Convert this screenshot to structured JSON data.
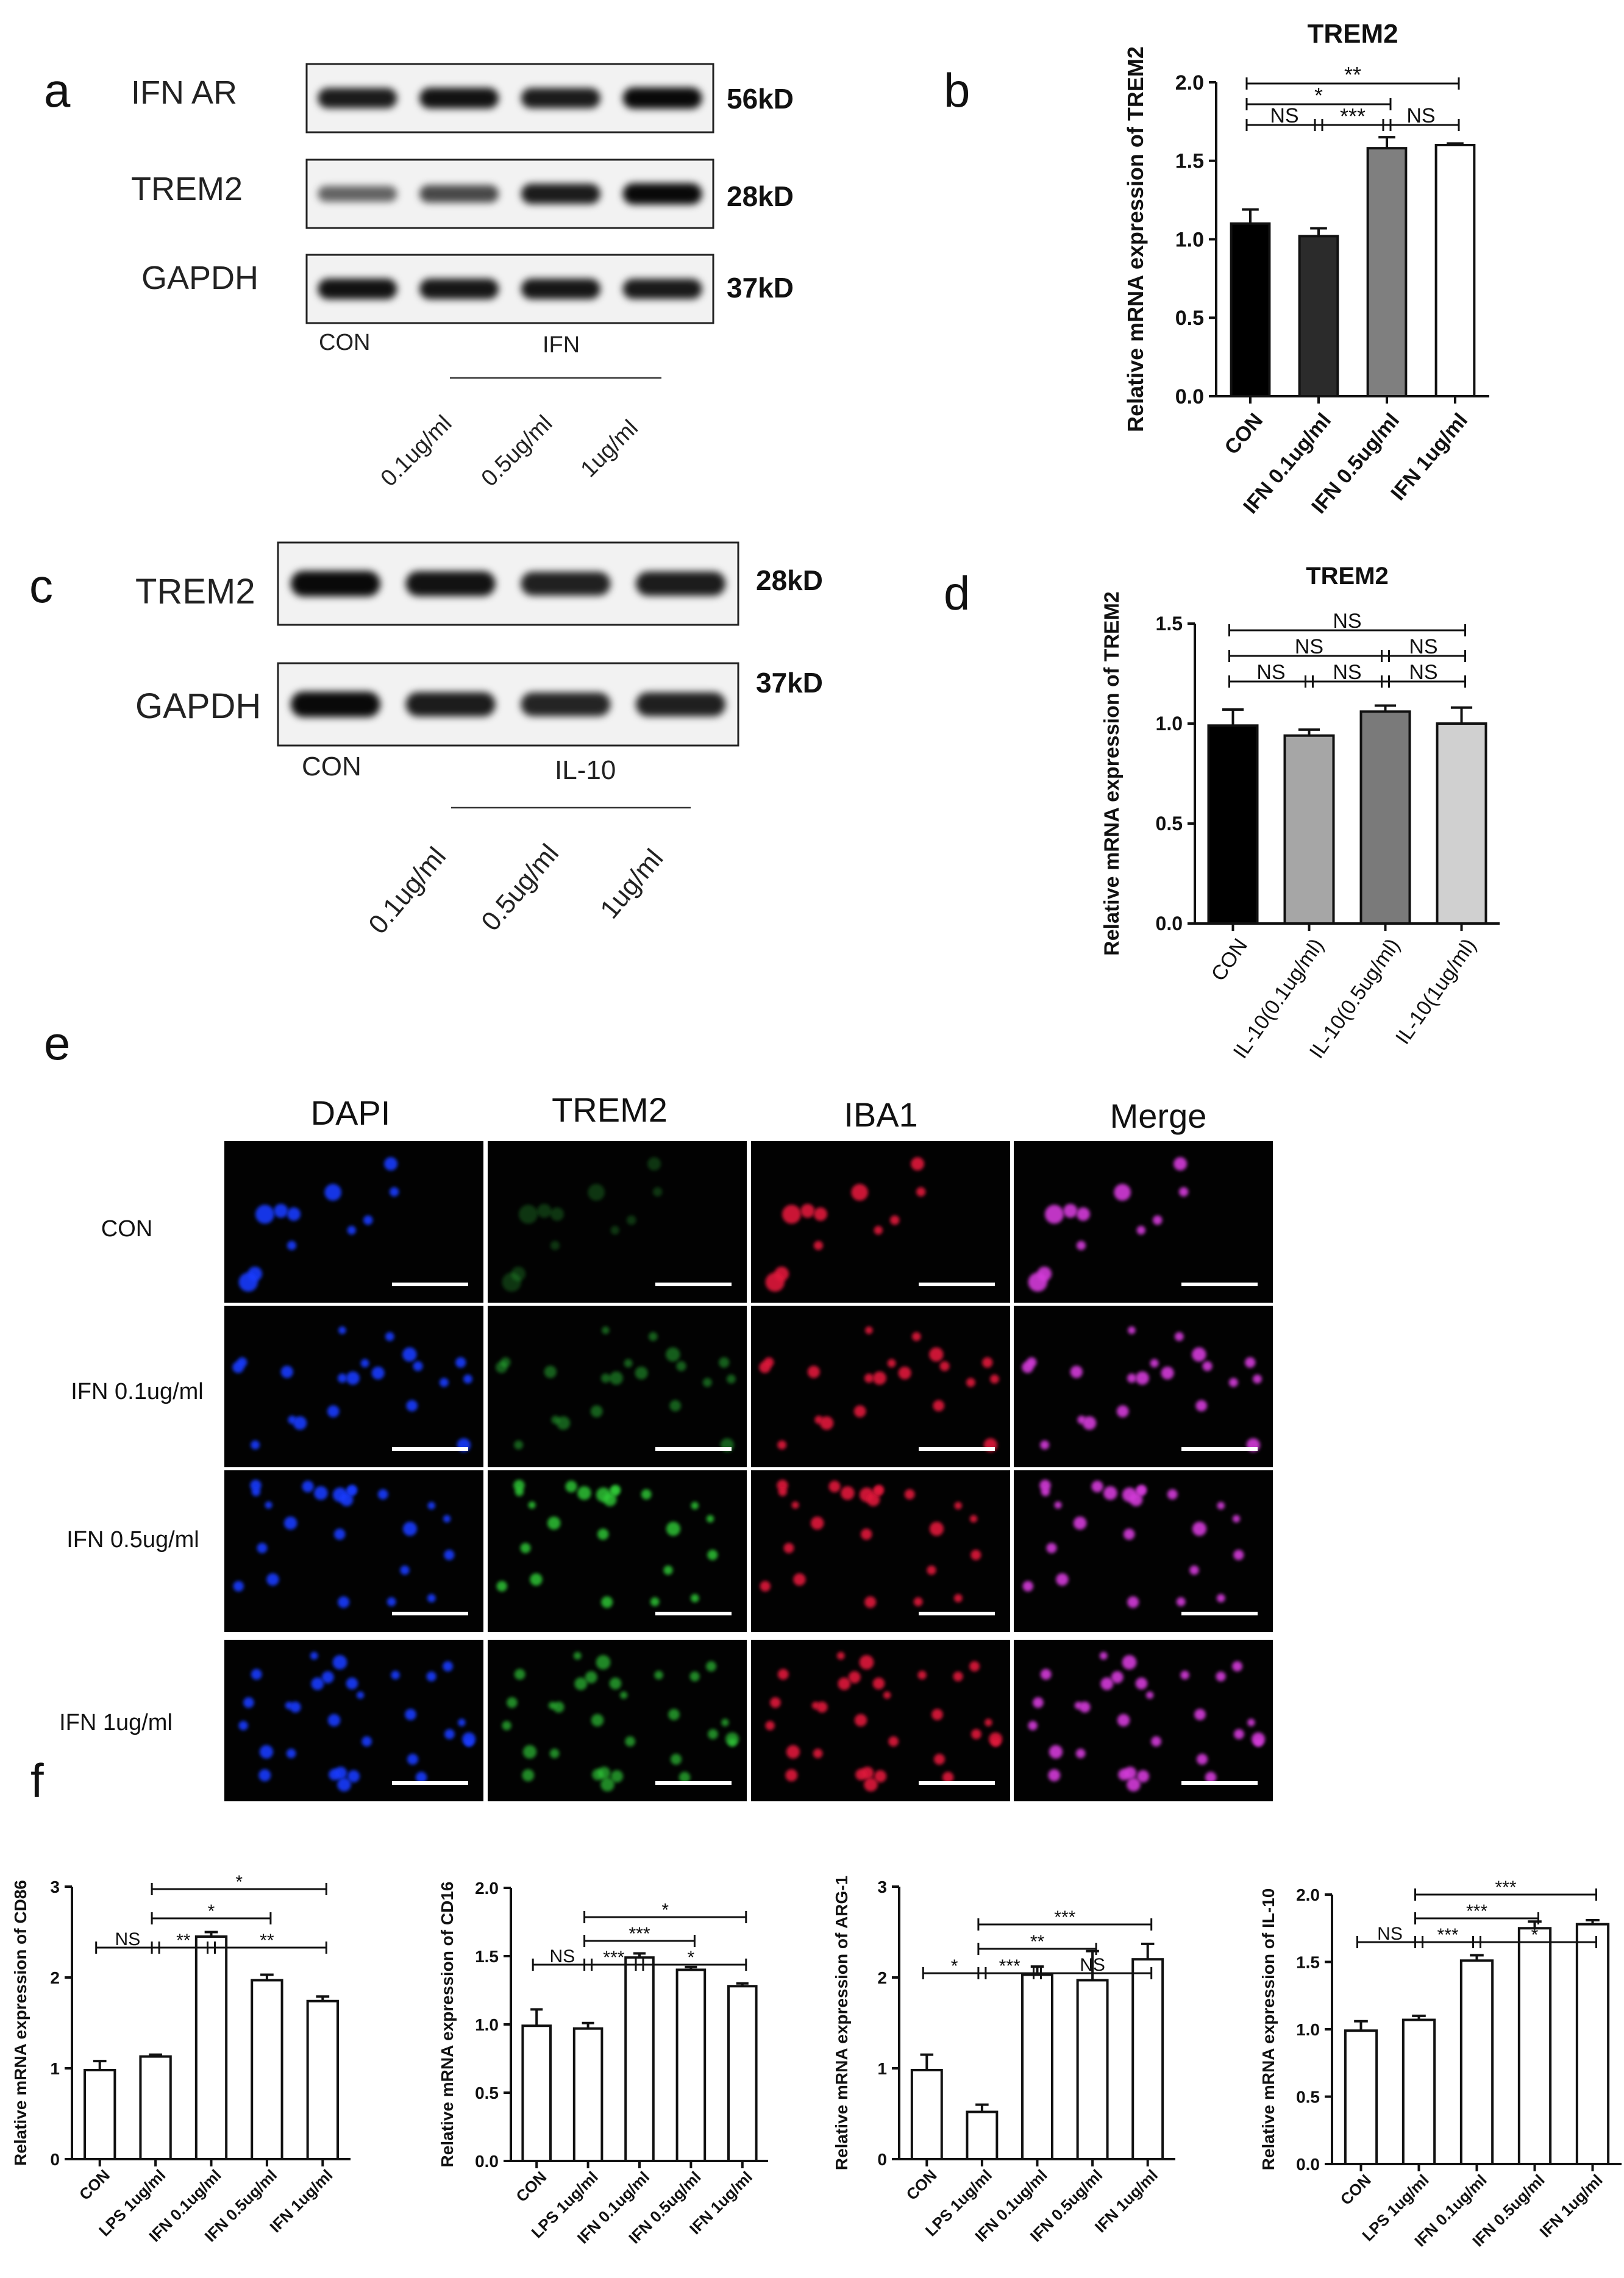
{
  "panels": {
    "a": {
      "letter": "a",
      "rows": [
        {
          "label": "IFN AR",
          "kd": "56kD",
          "intensity": [
            0.85,
            0.9,
            0.85,
            0.95
          ]
        },
        {
          "label": "TREM2",
          "kd": "28kD",
          "intensity": [
            0.45,
            0.6,
            0.85,
            0.95
          ]
        },
        {
          "label": "GAPDH",
          "kd": "37kD",
          "intensity": [
            0.9,
            0.88,
            0.88,
            0.86
          ]
        }
      ],
      "con": "CON",
      "group": "IFN",
      "doses": [
        "0.1ug/ml",
        "0.5ug/ml",
        "1ug/ml"
      ]
    },
    "c": {
      "letter": "c",
      "rows": [
        {
          "label": "TREM2",
          "kd": "28kD",
          "intensity": [
            0.95,
            0.9,
            0.82,
            0.85
          ]
        },
        {
          "label": "GAPDH",
          "kd": "37kD",
          "intensity": [
            0.95,
            0.85,
            0.8,
            0.83
          ]
        }
      ],
      "con": "CON",
      "group": "IL-10",
      "doses": [
        "0.1ug/ml",
        "0.5ug/ml",
        "1ug/ml"
      ]
    },
    "e": {
      "letter": "e",
      "columns": [
        "DAPI",
        "TREM2",
        "IBA1",
        "Merge"
      ],
      "rows": [
        "CON",
        "IFN 0.1ug/ml",
        "IFN 0.5ug/ml",
        "IFN 1ug/ml"
      ],
      "channel_colors": {
        "dapi": "#1a3cff",
        "trem2": "#2fcf3a",
        "iba1": "#e0163a",
        "merge": "#d43ad9"
      }
    },
    "f": {
      "letter": "f"
    }
  },
  "chart_data": [
    {
      "id": "b",
      "letter": "b",
      "type": "bar",
      "title": "TREM2",
      "ylabel": "Relative mRNA expression of  TREM2",
      "categories": [
        "CON",
        "IFN 0.1ug/ml",
        "IFN 0.5ug/ml",
        "IFN 1ug/ml"
      ],
      "values": [
        1.1,
        1.02,
        1.58,
        1.6
      ],
      "errors": [
        0.09,
        0.05,
        0.07,
        0.01
      ],
      "colors": [
        "#000000",
        "#2b2b2b",
        "#7f7f7f",
        "#ffffff"
      ],
      "ylim": [
        0,
        2.0
      ],
      "yticks": [
        "0.0",
        "0.5",
        "1.0",
        "1.5",
        "2.0"
      ],
      "bold_xticks": true,
      "xtick_rotation": 50,
      "sig": [
        {
          "from": 0,
          "to": 3,
          "level": 2,
          "label": "**"
        },
        {
          "from": 0,
          "to": 2,
          "level": 1,
          "label": "*"
        },
        {
          "from": 0,
          "to": 1,
          "level": 0,
          "label": "NS"
        },
        {
          "from": 1,
          "to": 2,
          "level": 0,
          "label": "***"
        },
        {
          "from": 2,
          "to": 3,
          "level": 0,
          "label": "NS"
        }
      ]
    },
    {
      "id": "d",
      "letter": "d",
      "type": "bar",
      "title": "TREM2",
      "ylabel": "Relative mRNA expression of  TREM2",
      "categories": [
        "CON",
        "IL-10(0.1ug/ml)",
        "IL-10(0.5ug/ml)",
        "IL-10(1ug/ml)"
      ],
      "values": [
        0.99,
        0.94,
        1.06,
        1.0
      ],
      "errors": [
        0.08,
        0.03,
        0.03,
        0.08
      ],
      "colors": [
        "#000000",
        "#a6a6a6",
        "#7a7a7a",
        "#d0d0d0"
      ],
      "ylim": [
        0,
        1.5
      ],
      "yticks": [
        "0.0",
        "0.5",
        "1.0",
        "1.5"
      ],
      "bold_xticks": false,
      "xtick_rotation": 55,
      "sig": [
        {
          "from": 0,
          "to": 3,
          "level": 2,
          "label": "NS"
        },
        {
          "from": 0,
          "to": 2,
          "level": 1,
          "label": "NS"
        },
        {
          "from": 2,
          "to": 3,
          "level": 1,
          "label": "NS"
        },
        {
          "from": 0,
          "to": 1,
          "level": 0,
          "label": "NS"
        },
        {
          "from": 1,
          "to": 2,
          "level": 0,
          "label": "NS"
        },
        {
          "from": 2,
          "to": 3,
          "level": 0,
          "label": "NS"
        }
      ]
    },
    {
      "id": "f1",
      "type": "bar",
      "title": "",
      "ylabel": "Relative mRNA expression of CD86",
      "categories": [
        "CON",
        "LPS 1ug/ml",
        "IFN 0.1ug/ml",
        "IFN 0.5ug/ml",
        "IFN 1ug/ml"
      ],
      "values": [
        0.98,
        1.13,
        2.45,
        1.97,
        1.74
      ],
      "errors": [
        0.1,
        0.02,
        0.05,
        0.06,
        0.05
      ],
      "colors": [
        "#ffffff",
        "#ffffff",
        "#ffffff",
        "#ffffff",
        "#ffffff"
      ],
      "ylim": [
        0,
        3
      ],
      "yticks": [
        "0",
        "1",
        "2",
        "3"
      ],
      "bold_xticks": true,
      "xtick_rotation": 45,
      "sig": [
        {
          "from": 0,
          "to": 1,
          "level": 0,
          "label": "NS"
        },
        {
          "from": 1,
          "to": 4,
          "level": 2,
          "label": "*"
        },
        {
          "from": 1,
          "to": 3,
          "level": 1,
          "label": "*"
        },
        {
          "from": 1,
          "to": 2,
          "level": 0,
          "label": "**"
        },
        {
          "from": 2,
          "to": 4,
          "level": 0,
          "label": "**"
        }
      ]
    },
    {
      "id": "f2",
      "type": "bar",
      "title": "",
      "ylabel": "Relative mRNA expression of CD16",
      "categories": [
        "CON",
        "LPS 1ug/ml",
        "IFN 0.1ug/ml",
        "IFN 0.5ug/ml",
        "IFN 1ug/ml"
      ],
      "values": [
        0.99,
        0.97,
        1.49,
        1.4,
        1.28
      ],
      "errors": [
        0.12,
        0.04,
        0.03,
        0.02,
        0.02
      ],
      "colors": [
        "#ffffff",
        "#ffffff",
        "#ffffff",
        "#ffffff",
        "#ffffff"
      ],
      "ylim": [
        0,
        2.0
      ],
      "yticks": [
        "0.0",
        "0.5",
        "1.0",
        "1.5",
        "2.0"
      ],
      "bold_xticks": true,
      "xtick_rotation": 45,
      "sig": [
        {
          "from": 0,
          "to": 1,
          "level": 0,
          "label": "NS"
        },
        {
          "from": 1,
          "to": 4,
          "level": 2,
          "label": "*"
        },
        {
          "from": 1,
          "to": 3,
          "level": 1,
          "label": "***"
        },
        {
          "from": 1,
          "to": 2,
          "level": 0,
          "label": "***"
        },
        {
          "from": 2,
          "to": 4,
          "level": 0,
          "label": "*"
        }
      ]
    },
    {
      "id": "f3",
      "type": "bar",
      "title": "",
      "ylabel": "Relative mRNA expression of  ARG-1",
      "categories": [
        "CON",
        "LPS 1ug/ml",
        "IFN 0.1ug/ml",
        "IFN 0.5ug/ml",
        "IFN 1ug/ml"
      ],
      "values": [
        0.98,
        0.52,
        2.03,
        1.97,
        2.2
      ],
      "errors": [
        0.17,
        0.08,
        0.09,
        0.32,
        0.17
      ],
      "colors": [
        "#ffffff",
        "#ffffff",
        "#ffffff",
        "#ffffff",
        "#ffffff"
      ],
      "ylim": [
        0,
        3
      ],
      "yticks": [
        "0",
        "1",
        "2",
        "3"
      ],
      "bold_xticks": true,
      "xtick_rotation": 45,
      "sig": [
        {
          "from": 0,
          "to": 1,
          "level": 0,
          "label": "*"
        },
        {
          "from": 1,
          "to": 4,
          "level": 2,
          "label": "***"
        },
        {
          "from": 1,
          "to": 3,
          "level": 1,
          "label": "**"
        },
        {
          "from": 1,
          "to": 2,
          "level": 0,
          "label": "***"
        },
        {
          "from": 2,
          "to": 4,
          "level": 0,
          "label": "NS"
        }
      ]
    },
    {
      "id": "f4",
      "type": "bar",
      "title": "",
      "ylabel": "Relative mRNA expression of  IL-10",
      "categories": [
        "CON",
        "LPS 1ug/ml",
        "IFN 0.1ug/ml",
        "IFN 0.5ug/ml",
        "IFN 1ug/ml"
      ],
      "values": [
        0.99,
        1.07,
        1.51,
        1.75,
        1.78
      ],
      "errors": [
        0.07,
        0.03,
        0.04,
        0.05,
        0.03
      ],
      "colors": [
        "#ffffff",
        "#ffffff",
        "#ffffff",
        "#ffffff",
        "#ffffff"
      ],
      "ylim": [
        0,
        2.0
      ],
      "yticks": [
        "0.0",
        "0.5",
        "1.0",
        "1.5",
        "2.0"
      ],
      "bold_xticks": true,
      "xtick_rotation": 45,
      "sig": [
        {
          "from": 0,
          "to": 1,
          "level": 0,
          "label": "NS"
        },
        {
          "from": 1,
          "to": 4,
          "level": 2,
          "label": "***"
        },
        {
          "from": 1,
          "to": 3,
          "level": 1,
          "label": "***"
        },
        {
          "from": 1,
          "to": 2,
          "level": 0,
          "label": "***"
        },
        {
          "from": 2,
          "to": 4,
          "level": 0,
          "label": "*"
        }
      ]
    }
  ]
}
